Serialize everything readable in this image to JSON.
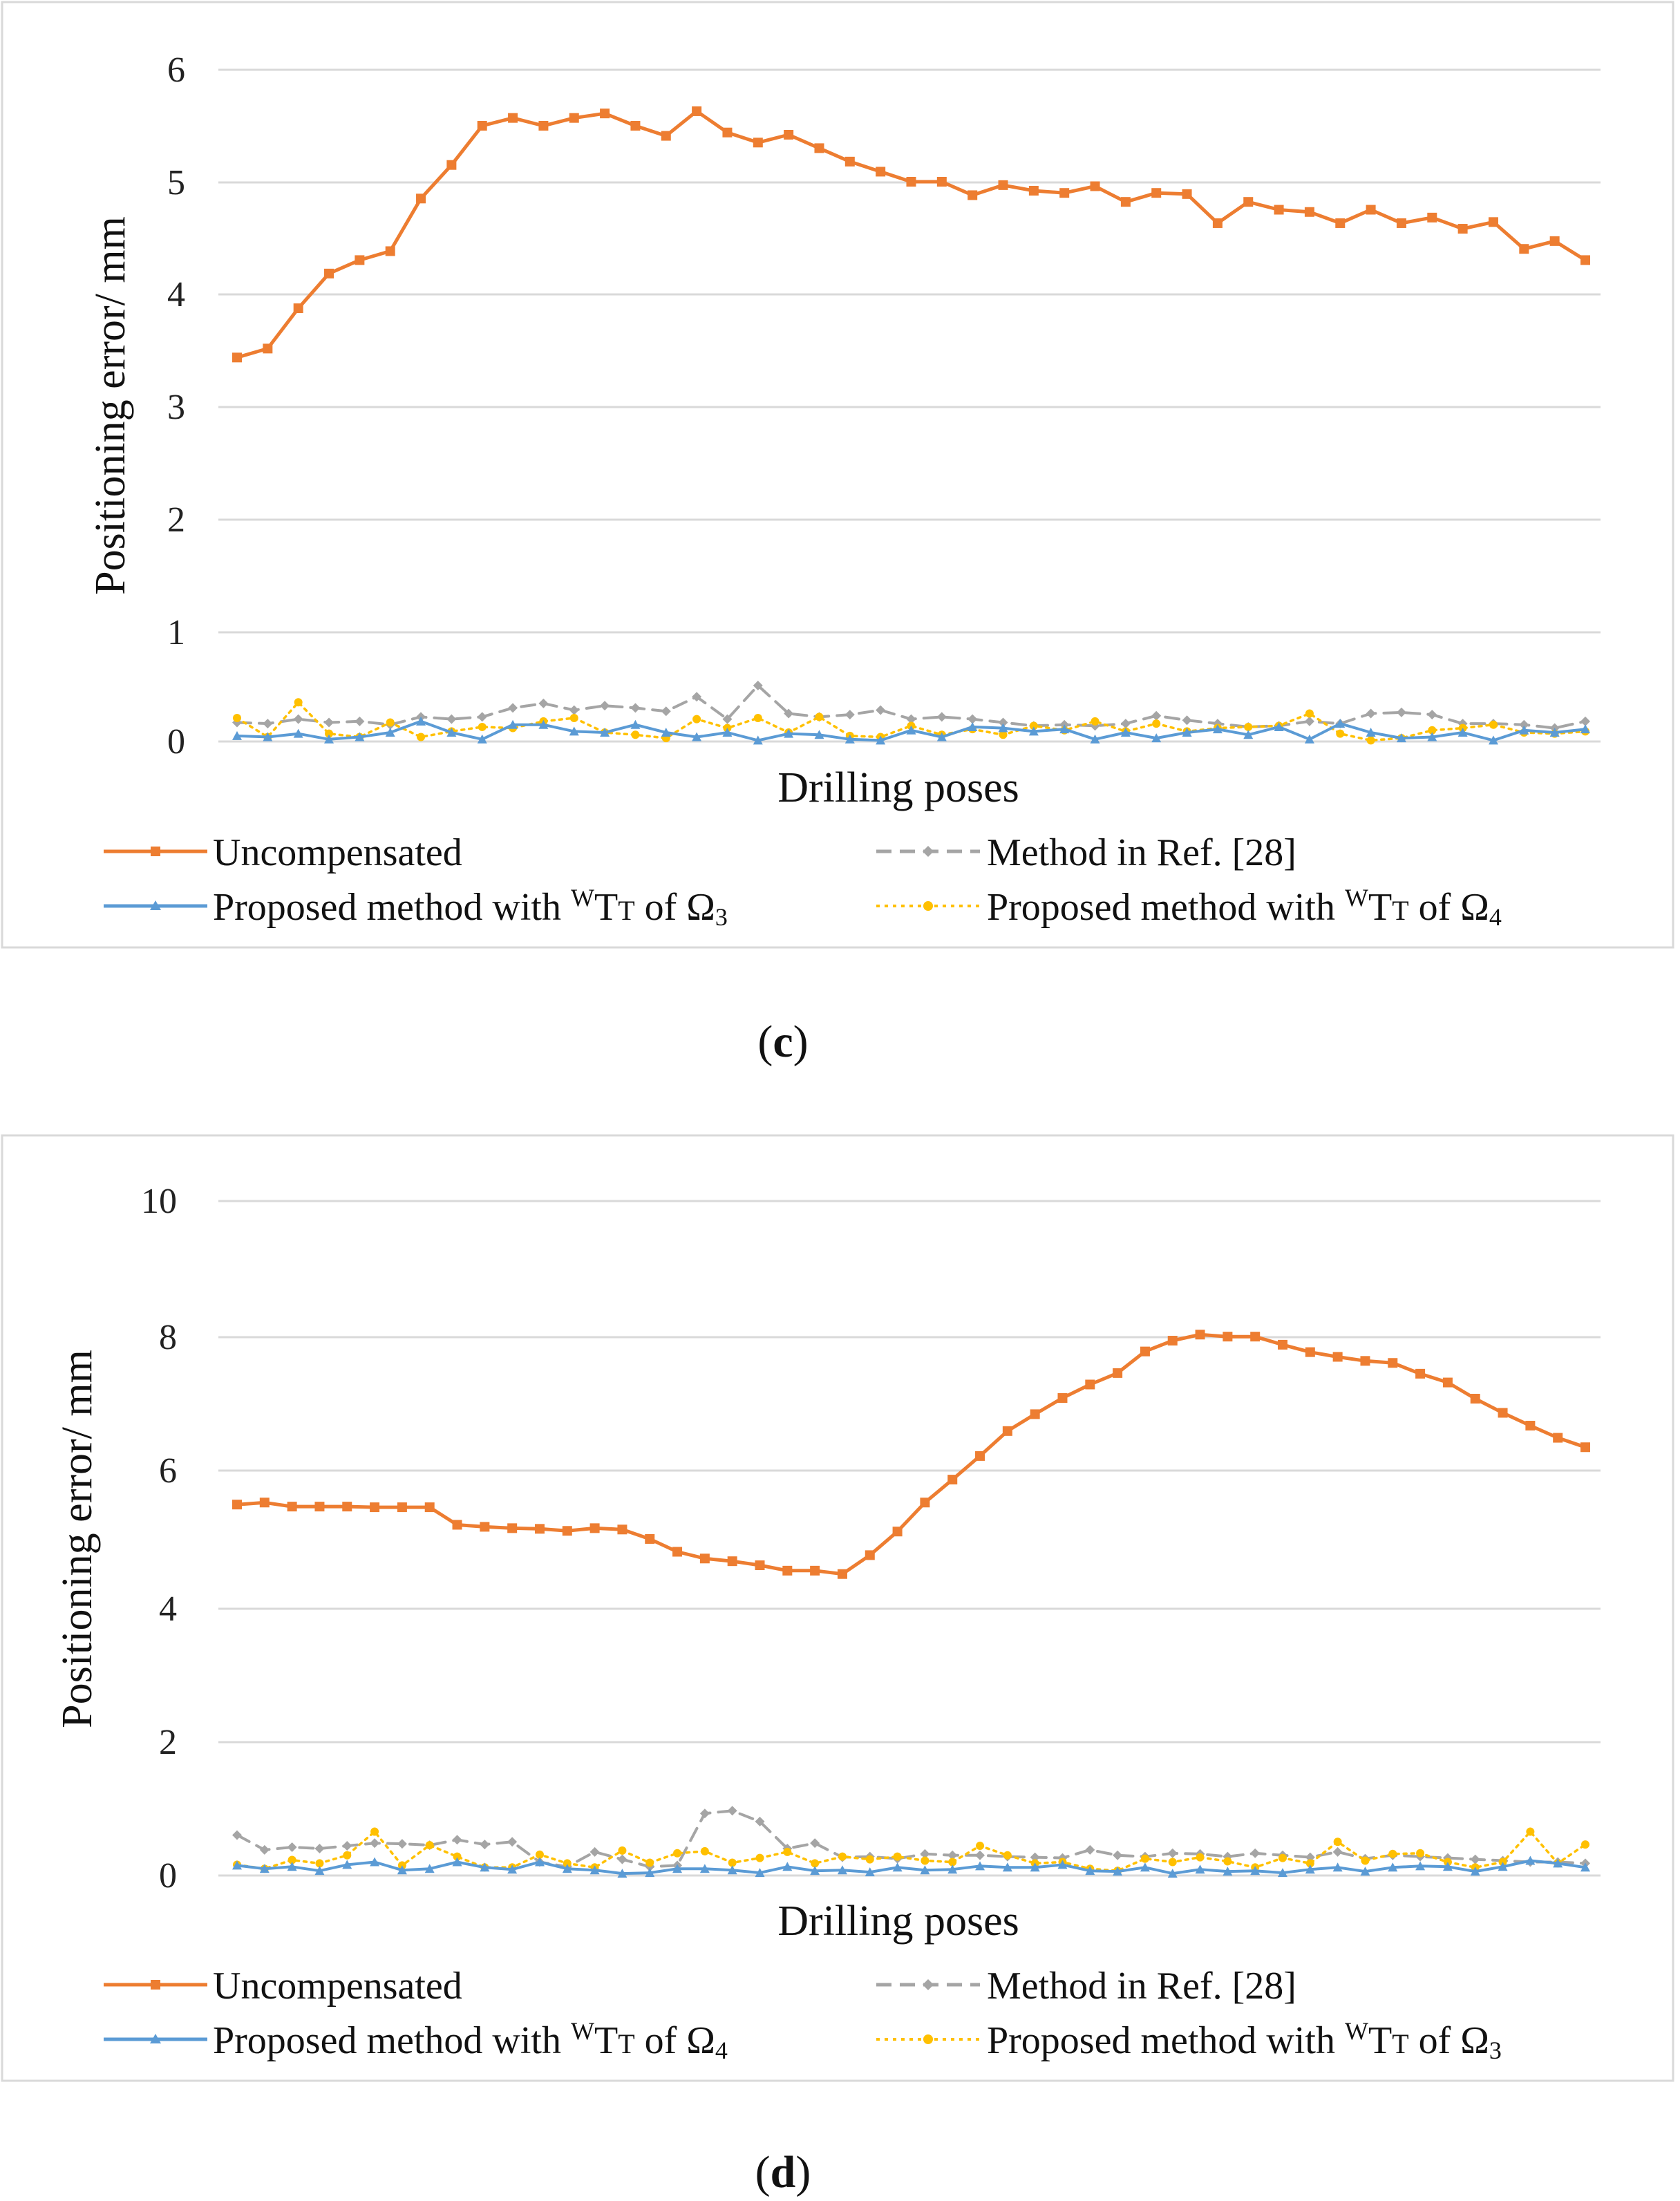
{
  "chart_data": [
    {
      "type": "line",
      "title": "",
      "xlabel": "Drilling poses",
      "ylabel": "Positioning error/ mm",
      "ylim": [
        0,
        6
      ],
      "yticks": [
        "0",
        "1",
        "2",
        "3",
        "4",
        "5",
        "6"
      ],
      "caption_open": "(",
      "caption_letter": "c",
      "caption_close": ")",
      "legend": {
        "uncompensated": "Uncompensated",
        "ref": "Method in Ref. [28]",
        "blue": {
          "pre": "Proposed method with ",
          "sup": "W",
          "mid": "T",
          "sub": "T",
          "post": " of Ω",
          "idx": "3"
        },
        "yellow": {
          "pre": "Proposed method with ",
          "sup": "W",
          "mid": "T",
          "sub": "T",
          "post": " of Ω",
          "idx": "4"
        }
      },
      "series": [
        {
          "name": "Uncompensated",
          "color": "#ED7D31",
          "values": [
            3.43,
            3.51,
            3.87,
            4.18,
            4.3,
            4.38,
            4.85,
            5.15,
            5.5,
            5.57,
            5.5,
            5.57,
            5.61,
            5.5,
            5.41,
            5.63,
            5.44,
            5.35,
            5.42,
            5.3,
            5.18,
            5.09,
            5.0,
            5.0,
            4.88,
            4.97,
            4.92,
            4.9,
            4.96,
            4.82,
            4.9,
            4.89,
            4.63,
            4.82,
            4.75,
            4.73,
            4.63,
            4.75,
            4.63,
            4.68,
            4.58,
            4.64,
            4.4,
            4.47,
            4.3
          ]
        },
        {
          "name": "Method in Ref. [28]",
          "color": "#A5A5A5",
          "values": [
            0.17,
            0.16,
            0.2,
            0.17,
            0.18,
            0.15,
            0.22,
            0.2,
            0.22,
            0.3,
            0.34,
            0.28,
            0.32,
            0.3,
            0.27,
            0.4,
            0.2,
            0.5,
            0.25,
            0.22,
            0.24,
            0.28,
            0.2,
            0.22,
            0.2,
            0.17,
            0.14,
            0.15,
            0.14,
            0.16,
            0.23,
            0.19,
            0.16,
            0.13,
            0.14,
            0.18,
            0.16,
            0.25,
            0.26,
            0.24,
            0.16,
            0.16,
            0.15,
            0.12,
            0.18
          ]
        },
        {
          "name": "Proposed method with WTT of Ω3",
          "color": "#5B9BD5",
          "values": [
            0.05,
            0.04,
            0.07,
            0.02,
            0.04,
            0.08,
            0.18,
            0.08,
            0.02,
            0.15,
            0.15,
            0.09,
            0.08,
            0.15,
            0.08,
            0.04,
            0.08,
            0.01,
            0.07,
            0.06,
            0.02,
            0.01,
            0.1,
            0.04,
            0.13,
            0.12,
            0.09,
            0.11,
            0.02,
            0.08,
            0.03,
            0.08,
            0.11,
            0.06,
            0.13,
            0.02,
            0.16,
            0.08,
            0.03,
            0.04,
            0.08,
            0.01,
            0.1,
            0.08,
            0.11
          ]
        },
        {
          "name": "Proposed method with WTT of Ω4",
          "color": "#FFC000",
          "values": [
            0.21,
            0.04,
            0.35,
            0.07,
            0.04,
            0.17,
            0.04,
            0.09,
            0.13,
            0.12,
            0.18,
            0.21,
            0.08,
            0.06,
            0.03,
            0.2,
            0.12,
            0.21,
            0.08,
            0.22,
            0.05,
            0.04,
            0.14,
            0.06,
            0.11,
            0.06,
            0.14,
            0.1,
            0.18,
            0.09,
            0.16,
            0.09,
            0.12,
            0.13,
            0.14,
            0.25,
            0.07,
            0.01,
            0.03,
            0.1,
            0.12,
            0.15,
            0.08,
            0.07,
            0.09
          ]
        }
      ]
    },
    {
      "type": "line",
      "title": "",
      "xlabel": "Drilling poses",
      "ylabel": "Positioning error/ mm",
      "ylim": [
        0,
        10
      ],
      "yticks": [
        "0",
        "2",
        "4",
        "6",
        "8",
        "10"
      ],
      "caption_open": "(",
      "caption_letter": "d",
      "caption_close": ")",
      "legend": {
        "uncompensated": "Uncompensated",
        "ref": "Method in Ref. [28]",
        "blue": {
          "pre": "Proposed method with ",
          "sup": "W",
          "mid": "T",
          "sub": "T",
          "post": " of Ω",
          "idx": "4"
        },
        "yellow": {
          "pre": "Proposed method with ",
          "sup": "W",
          "mid": "T",
          "sub": "T",
          "post": " of Ω",
          "idx": "3"
        }
      },
      "series": [
        {
          "name": "Uncompensated",
          "color": "#ED7D31",
          "values": [
            5.5,
            5.53,
            5.47,
            5.47,
            5.47,
            5.46,
            5.46,
            5.46,
            5.2,
            5.17,
            5.15,
            5.14,
            5.11,
            5.15,
            5.13,
            4.99,
            4.8,
            4.7,
            4.66,
            4.6,
            4.52,
            4.52,
            4.47,
            4.75,
            5.1,
            5.53,
            5.87,
            6.22,
            6.59,
            6.84,
            7.08,
            7.28,
            7.45,
            7.77,
            7.93,
            8.02,
            7.99,
            7.99,
            7.87,
            7.76,
            7.69,
            7.63,
            7.6,
            7.44,
            7.31,
            7.07,
            6.86,
            6.67,
            6.49,
            6.35
          ]
        },
        {
          "name": "Method in Ref. [28]",
          "color": "#A5A5A5",
          "values": [
            0.6,
            0.38,
            0.42,
            0.4,
            0.44,
            0.48,
            0.47,
            0.45,
            0.53,
            0.46,
            0.5,
            0.2,
            0.13,
            0.35,
            0.24,
            0.13,
            0.15,
            0.92,
            0.96,
            0.8,
            0.4,
            0.48,
            0.27,
            0.28,
            0.25,
            0.32,
            0.3,
            0.3,
            0.28,
            0.27,
            0.26,
            0.38,
            0.3,
            0.28,
            0.33,
            0.32,
            0.28,
            0.33,
            0.3,
            0.27,
            0.35,
            0.25,
            0.3,
            0.28,
            0.26,
            0.24,
            0.22,
            0.2,
            0.2,
            0.18
          ]
        },
        {
          "name": "Proposed method with WTT of Ω4",
          "color": "#5B9BD5",
          "values": [
            0.15,
            0.1,
            0.13,
            0.07,
            0.16,
            0.2,
            0.08,
            0.1,
            0.2,
            0.12,
            0.09,
            0.2,
            0.1,
            0.08,
            0.03,
            0.04,
            0.1,
            0.1,
            0.08,
            0.04,
            0.13,
            0.07,
            0.08,
            0.05,
            0.12,
            0.08,
            0.09,
            0.14,
            0.12,
            0.12,
            0.16,
            0.07,
            0.06,
            0.12,
            0.03,
            0.09,
            0.06,
            0.07,
            0.04,
            0.09,
            0.12,
            0.06,
            0.12,
            0.14,
            0.13,
            0.06,
            0.13,
            0.22,
            0.18,
            0.12
          ]
        },
        {
          "name": "Proposed method with WTT of Ω3",
          "color": "#FFC000",
          "values": [
            0.16,
            0.1,
            0.23,
            0.18,
            0.3,
            0.65,
            0.15,
            0.45,
            0.28,
            0.12,
            0.12,
            0.31,
            0.18,
            0.12,
            0.37,
            0.19,
            0.33,
            0.36,
            0.19,
            0.26,
            0.35,
            0.18,
            0.28,
            0.24,
            0.28,
            0.22,
            0.2,
            0.44,
            0.3,
            0.18,
            0.2,
            0.1,
            0.07,
            0.25,
            0.2,
            0.27,
            0.21,
            0.12,
            0.26,
            0.18,
            0.5,
            0.22,
            0.32,
            0.33,
            0.2,
            0.12,
            0.2,
            0.65,
            0.18,
            0.46
          ]
        }
      ]
    }
  ]
}
